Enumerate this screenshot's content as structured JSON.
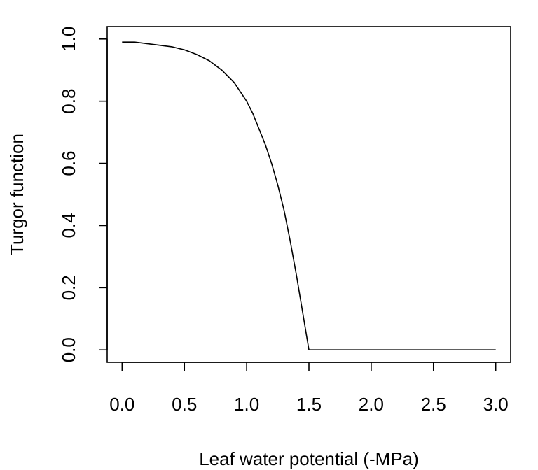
{
  "chart_data": {
    "type": "line",
    "title": "",
    "xlabel": "Leaf water potential (-MPa)",
    "ylabel": "Turgor function",
    "xlim": [
      -0.12,
      3.12
    ],
    "ylim": [
      -0.04,
      1.04
    ],
    "grid": false,
    "xticks": [
      0.0,
      0.5,
      1.0,
      1.5,
      2.0,
      2.5,
      3.0
    ],
    "xtick_labels": [
      "0.0",
      "0.5",
      "1.0",
      "1.5",
      "2.0",
      "2.5",
      "3.0"
    ],
    "yticks": [
      0.0,
      0.2,
      0.4,
      0.6,
      0.8,
      1.0
    ],
    "ytick_labels": [
      "0.0",
      "0.2",
      "0.4",
      "0.6",
      "0.8",
      "1.0"
    ],
    "series": [
      {
        "color": "#000000",
        "x": [
          0.0,
          0.1,
          0.2,
          0.3,
          0.4,
          0.5,
          0.6,
          0.7,
          0.8,
          0.9,
          1.0,
          1.05,
          1.1,
          1.15,
          1.2,
          1.25,
          1.3,
          1.35,
          1.4,
          1.45,
          1.5,
          2.0,
          2.5,
          3.0
        ],
        "y": [
          0.99,
          0.99,
          0.985,
          0.98,
          0.975,
          0.965,
          0.95,
          0.93,
          0.9,
          0.86,
          0.8,
          0.76,
          0.71,
          0.66,
          0.6,
          0.53,
          0.45,
          0.35,
          0.24,
          0.12,
          0.0,
          0.0,
          0.0,
          0.0
        ]
      }
    ]
  }
}
